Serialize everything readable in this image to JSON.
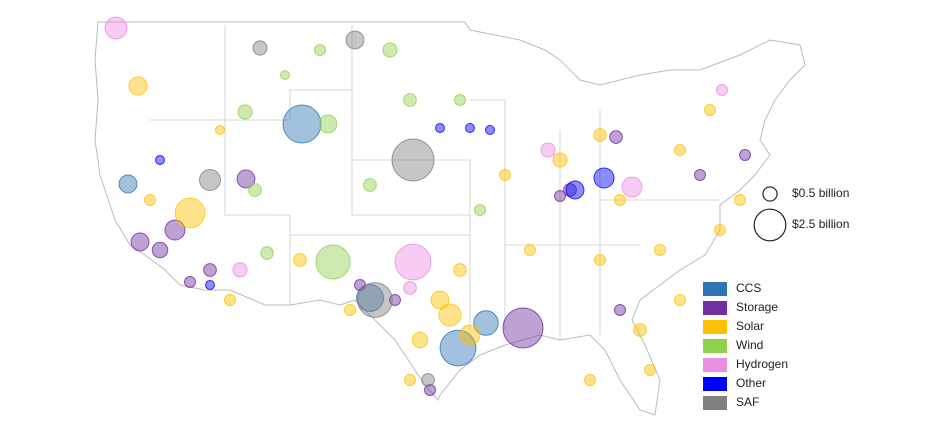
{
  "chart_data": {
    "type": "bubble-map",
    "series": [
      {
        "name": "CCS",
        "color": "#2e75b6",
        "values": [
          3.6,
          3.2,
          1.5,
          0.8,
          1.8
        ]
      },
      {
        "name": "Storage",
        "color": "#7030a0",
        "values": [
          4,
          1,
          0.8,
          0.8,
          0.6,
          0.4,
          0.3,
          0.4,
          0.3,
          0.3,
          0.4,
          0.3,
          0.3,
          0.3,
          0.3,
          0.3
        ]
      },
      {
        "name": "Solar",
        "color": "#ffc000",
        "values": [
          2.2,
          0.8,
          1.2,
          0.8,
          1,
          0.6,
          0.4,
          0.3,
          0.5,
          0.4,
          0.3,
          0.4,
          0.3,
          0.3,
          0.3,
          0.3,
          0.3,
          0.3,
          0.3,
          0.3,
          0.2,
          0.3,
          0.3,
          0.3,
          0.4,
          0.3,
          0.3,
          0.3
        ]
      },
      {
        "name": "Wind",
        "color": "#92d050",
        "values": [
          2.9,
          0.8,
          0.5,
          0.5,
          0.4,
          0.3,
          0.4,
          0.3,
          0.4,
          0.4,
          0.3,
          0.2
        ]
      },
      {
        "name": "Hydrogen",
        "color": "#ea8ee2",
        "values": [
          3.2,
          1.2,
          1,
          0.5,
          0.5,
          0.3,
          0.4
        ]
      },
      {
        "name": "Other",
        "color": "#0000ff",
        "values": [
          1,
          0.8,
          0.2,
          0.2,
          0.2,
          0.2,
          0.2
        ]
      },
      {
        "name": "SAF",
        "color": "#808080",
        "values": [
          4.4,
          0.8,
          0.5,
          1.1,
          3,
          0.4
        ]
      }
    ],
    "size_legend": [
      {
        "value": 0.5,
        "label": "$0.5 billion"
      },
      {
        "value": 2.5,
        "label": "$2.5 billion"
      }
    ]
  }
}
